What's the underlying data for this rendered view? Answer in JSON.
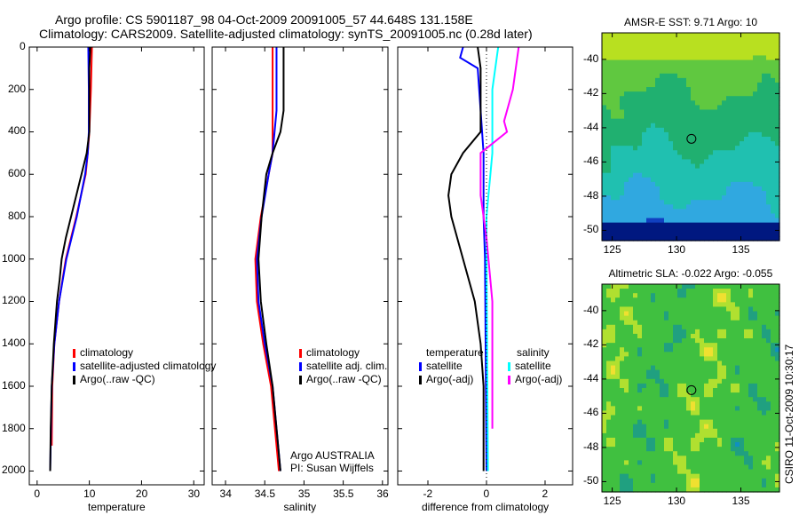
{
  "title_line1": "Argo profile: CS 5901187_98 04-Oct-2009 20091005_57 44.648S 131.158E",
  "title_line2": "Climatology: CARS2009. Satellite-adjusted climatology: synTS_20091005.nc (0.28d later)",
  "side_label": "CSIRO 11-Oct-2009 10:30:17",
  "colors": {
    "climatology": "#ff0000",
    "satellite": "#0000ff",
    "argo": "#000000",
    "sal_satellite": "#00ffff",
    "sal_argo": "#ff00ff"
  },
  "chart_data": [
    {
      "type": "line",
      "xlabel": "temperature",
      "ylabel": "",
      "xlim": [
        -1.5,
        32
      ],
      "ylim": [
        2065,
        0
      ],
      "xticks": [
        "0",
        "10",
        "20",
        "30"
      ],
      "xtick_values": [
        0,
        10,
        20,
        30
      ],
      "yticks": [
        "0",
        "200",
        "400",
        "600",
        "800",
        "1000",
        "1200",
        "1400",
        "1600",
        "1800",
        "2000"
      ],
      "ytick_values": [
        0,
        200,
        400,
        600,
        800,
        1000,
        1200,
        1400,
        1600,
        1800,
        2000
      ],
      "legend": [
        "climatology",
        "satellite-adjusted climatology",
        "Argo(..raw -QC)"
      ],
      "series": [
        {
          "name": "climatology",
          "color": "#ff0000",
          "depth": [
            0,
            200,
            400,
            500,
            600,
            800,
            1000,
            1200,
            1400,
            1600,
            1880
          ],
          "values": [
            10.5,
            10.3,
            10,
            9.7,
            9.3,
            7.5,
            5.5,
            4.2,
            3.3,
            2.9,
            2.8
          ]
        },
        {
          "name": "satellite-adjusted climatology",
          "color": "#0000ff",
          "depth": [
            0,
            200,
            400,
            500,
            600,
            800,
            1000,
            1200,
            1400,
            1600,
            2000
          ],
          "values": [
            9.8,
            9.9,
            9.9,
            9.7,
            9.2,
            7.6,
            5.6,
            4.2,
            3.3,
            2.8,
            2.5
          ]
        },
        {
          "name": "Argo(..raw -QC)",
          "color": "#000000",
          "depth": [
            0,
            100,
            200,
            400,
            500,
            600,
            700,
            800,
            900,
            1000,
            1100,
            1200,
            1400,
            1600,
            1800,
            2000
          ],
          "values": [
            10.2,
            10,
            10,
            10,
            9.5,
            8.5,
            7.5,
            6.5,
            5.5,
            4.7,
            4.3,
            3.8,
            3.2,
            2.8,
            2.6,
            2.5
          ]
        }
      ]
    },
    {
      "type": "line",
      "xlabel": "salinity",
      "xlim": [
        33.83,
        36.07
      ],
      "ylim": [
        2065,
        0
      ],
      "xticks": [
        "34",
        "34.5",
        "35",
        "35.5",
        "36"
      ],
      "xtick_values": [
        34,
        34.5,
        35,
        35.5,
        36
      ],
      "legend": [
        "climatology",
        "satellite adj. clim.",
        "Argo(..raw -QC)"
      ],
      "annotation": [
        "Argo AUSTRALIA",
        "PI: Susan Wijffels"
      ],
      "series": [
        {
          "name": "climatology",
          "color": "#ff0000",
          "depth": [
            0,
            400,
            500,
            600,
            800,
            1000,
            1200,
            1400,
            1600,
            1800,
            2000
          ],
          "values": [
            34.6,
            34.6,
            34.6,
            34.55,
            34.45,
            34.38,
            34.4,
            34.48,
            34.58,
            34.63,
            34.68
          ]
        },
        {
          "name": "satellite adj. clim.",
          "color": "#0000ff",
          "depth": [
            0,
            300,
            500,
            600,
            800,
            1000,
            1200,
            1400,
            1600,
            1800,
            2000
          ],
          "values": [
            34.65,
            34.65,
            34.6,
            34.55,
            34.46,
            34.4,
            34.42,
            34.5,
            34.6,
            34.65,
            34.7
          ]
        },
        {
          "name": "Argo(..raw -QC)",
          "color": "#000000",
          "depth": [
            0,
            300,
            400,
            500,
            600,
            800,
            1000,
            1200,
            1400,
            1600,
            1800,
            2000
          ],
          "values": [
            34.74,
            34.74,
            34.7,
            34.6,
            34.52,
            34.46,
            34.42,
            34.45,
            34.52,
            34.6,
            34.65,
            34.7
          ]
        }
      ]
    },
    {
      "type": "line",
      "xlabel": "difference from climatology",
      "xlim": [
        -3.03,
        2.94
      ],
      "ylim": [
        2065,
        0
      ],
      "xticks": [
        "-2",
        "0",
        "2"
      ],
      "xtick_values": [
        -2,
        0,
        2
      ],
      "legend_headers": [
        "temperature",
        "salinity"
      ],
      "legend": [
        "satellite",
        "Argo(-adj)",
        "satellite",
        "Argo(-adj)"
      ],
      "series": [
        {
          "name": "temperature satellite",
          "color": "#0000ff",
          "depth": [
            0,
            50,
            100,
            300,
            500,
            800,
            1000,
            2000
          ],
          "values": [
            -0.8,
            -0.9,
            -0.3,
            -0.2,
            -0.1,
            -0.1,
            -0.05,
            0
          ]
        },
        {
          "name": "temperature Argo(-adj)",
          "color": "#000000",
          "depth": [
            0,
            100,
            300,
            400,
            500,
            600,
            700,
            800,
            900,
            1000,
            1100,
            1200,
            1400,
            1600,
            2000
          ],
          "values": [
            -0.3,
            -0.2,
            -0.2,
            -0.2,
            -0.8,
            -1.2,
            -1.3,
            -1.2,
            -1.0,
            -0.8,
            -0.6,
            -0.4,
            -0.2,
            -0.1,
            -0.1
          ]
        },
        {
          "name": "salinity satellite",
          "color": "#00ffff",
          "depth": [
            0,
            200,
            500,
            800,
            1000,
            2000
          ],
          "values": [
            0.4,
            0.2,
            0.2,
            0.0,
            0.0,
            0.05
          ]
        },
        {
          "name": "salinity Argo(-adj)",
          "color": "#ff00ff",
          "depth": [
            0,
            200,
            350,
            400,
            500,
            700,
            900,
            1200,
            1800
          ],
          "values": [
            1.1,
            0.9,
            0.6,
            0.7,
            -0.2,
            -0.2,
            0.0,
            0.2,
            0.2
          ]
        }
      ]
    },
    {
      "type": "heatmap",
      "title": "AMSR-E SST: 9.71 Argo: 10",
      "xticks": [
        "125",
        "130",
        "135"
      ],
      "xtick_values": [
        125,
        130,
        135
      ],
      "yticks": [
        "-40",
        "-42",
        "-44",
        "-46",
        "-48",
        "-50"
      ],
      "ytick_values": [
        -40,
        -42,
        -44,
        -46,
        -48,
        -50
      ],
      "xlim": [
        124.2,
        138
      ],
      "ylim": [
        -38.45,
        -50.6
      ],
      "marker": [
        131.158,
        -44.648
      ]
    },
    {
      "type": "heatmap",
      "title": "Altimetric SLA: -0.022 Argo: -0.055",
      "xticks": [
        "125",
        "130",
        "135"
      ],
      "xtick_values": [
        125,
        130,
        135
      ],
      "yticks": [
        "-40",
        "-42",
        "-44",
        "-46",
        "-48",
        "-50"
      ],
      "ytick_values": [
        -40,
        -42,
        -44,
        -46,
        -48,
        -50
      ],
      "xlim": [
        124.2,
        138
      ],
      "ylim": [
        -38.45,
        -50.6
      ],
      "marker": [
        131.158,
        -44.648
      ]
    }
  ]
}
